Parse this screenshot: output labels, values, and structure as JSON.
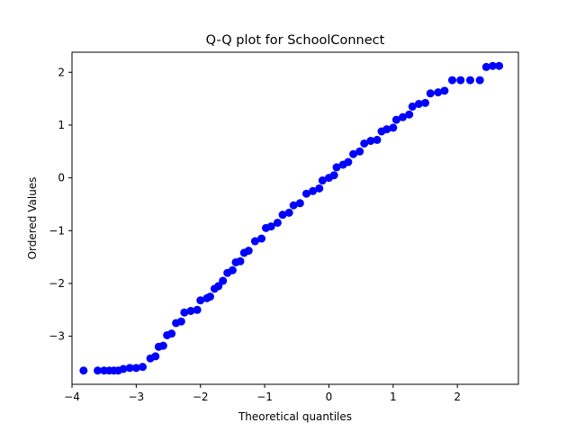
{
  "chart_data": {
    "type": "scatter",
    "title": "Q-Q plot for SchoolConnect",
    "xlabel": "Theoretical quantiles",
    "ylabel": "Ordered Values",
    "xlim": [
      -4.0,
      2.95
    ],
    "ylim": [
      -3.91,
      2.38
    ],
    "xticks": [
      -4,
      -3,
      -2,
      -1,
      0,
      1,
      2
    ],
    "xtick_labels": [
      "−4",
      "−3",
      "−2",
      "−1",
      "0",
      "1",
      "2"
    ],
    "yticks": [
      -3,
      -2,
      -1,
      0,
      1,
      2
    ],
    "ytick_labels": [
      "−3",
      "−2",
      "−1",
      "0",
      "1",
      "2"
    ],
    "grid": false,
    "marker_color": "#0000ff",
    "series": [
      {
        "points": [
          [
            -3.82,
            -3.65
          ],
          [
            -3.6,
            -3.65
          ],
          [
            -3.5,
            -3.65
          ],
          [
            -3.42,
            -3.65
          ],
          [
            -3.35,
            -3.65
          ],
          [
            -3.28,
            -3.65
          ],
          [
            -3.2,
            -3.62
          ],
          [
            -3.1,
            -3.6
          ],
          [
            -3.0,
            -3.6
          ],
          [
            -2.9,
            -3.58
          ],
          [
            -2.78,
            -3.42
          ],
          [
            -2.7,
            -3.38
          ],
          [
            -2.65,
            -3.2
          ],
          [
            -2.58,
            -3.18
          ],
          [
            -2.52,
            -2.98
          ],
          [
            -2.45,
            -2.95
          ],
          [
            -2.38,
            -2.75
          ],
          [
            -2.3,
            -2.72
          ],
          [
            -2.25,
            -2.55
          ],
          [
            -2.15,
            -2.52
          ],
          [
            -2.05,
            -2.5
          ],
          [
            -2.0,
            -2.32
          ],
          [
            -1.9,
            -2.28
          ],
          [
            -1.85,
            -2.25
          ],
          [
            -1.78,
            -2.1
          ],
          [
            -1.72,
            -2.05
          ],
          [
            -1.65,
            -1.95
          ],
          [
            -1.58,
            -1.8
          ],
          [
            -1.5,
            -1.75
          ],
          [
            -1.45,
            -1.6
          ],
          [
            -1.38,
            -1.58
          ],
          [
            -1.32,
            -1.42
          ],
          [
            -1.25,
            -1.38
          ],
          [
            -1.15,
            -1.2
          ],
          [
            -1.05,
            -1.15
          ],
          [
            -0.98,
            -0.95
          ],
          [
            -0.9,
            -0.92
          ],
          [
            -0.8,
            -0.85
          ],
          [
            -0.72,
            -0.7
          ],
          [
            -0.62,
            -0.66
          ],
          [
            -0.55,
            -0.52
          ],
          [
            -0.45,
            -0.48
          ],
          [
            -0.35,
            -0.3
          ],
          [
            -0.25,
            -0.25
          ],
          [
            -0.15,
            -0.2
          ],
          [
            -0.1,
            -0.05
          ],
          [
            0.0,
            0.0
          ],
          [
            0.08,
            0.05
          ],
          [
            0.12,
            0.2
          ],
          [
            0.22,
            0.25
          ],
          [
            0.3,
            0.3
          ],
          [
            0.38,
            0.45
          ],
          [
            0.48,
            0.5
          ],
          [
            0.55,
            0.65
          ],
          [
            0.65,
            0.7
          ],
          [
            0.75,
            0.72
          ],
          [
            0.82,
            0.88
          ],
          [
            0.9,
            0.92
          ],
          [
            1.0,
            0.95
          ],
          [
            1.05,
            1.1
          ],
          [
            1.15,
            1.15
          ],
          [
            1.25,
            1.2
          ],
          [
            1.3,
            1.35
          ],
          [
            1.4,
            1.4
          ],
          [
            1.5,
            1.42
          ],
          [
            1.58,
            1.6
          ],
          [
            1.7,
            1.62
          ],
          [
            1.8,
            1.65
          ],
          [
            1.92,
            1.85
          ],
          [
            2.05,
            1.85
          ],
          [
            2.2,
            1.85
          ],
          [
            2.35,
            1.85
          ],
          [
            2.45,
            2.1
          ],
          [
            2.55,
            2.12
          ],
          [
            2.65,
            2.12
          ]
        ]
      }
    ]
  }
}
